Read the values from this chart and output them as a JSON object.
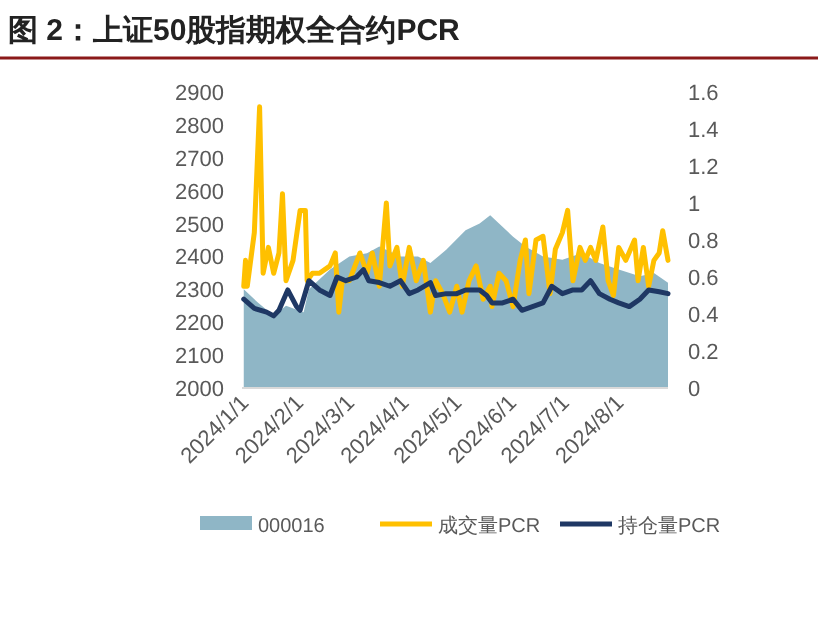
{
  "chart_data": {
    "type": "line",
    "title": "图 2：上证50股指期权全合约PCR",
    "xlim": [
      "2024-01-01",
      "2024-08-30"
    ],
    "xticks": [
      {
        "value": "2024-01-01",
        "label": "2024/1/1"
      },
      {
        "value": "2024-02-01",
        "label": "2024/2/1"
      },
      {
        "value": "2024-03-01",
        "label": "2024/3/1"
      },
      {
        "value": "2024-04-01",
        "label": "2024/4/1"
      },
      {
        "value": "2024-05-01",
        "label": "2024/5/1"
      },
      {
        "value": "2024-06-01",
        "label": "2024/6/1"
      },
      {
        "value": "2024-07-01",
        "label": "2024/7/1"
      },
      {
        "value": "2024-08-01",
        "label": "2024/8/1"
      }
    ],
    "ylim": [
      2000,
      2900
    ],
    "yticks": [
      2000,
      2100,
      2200,
      2300,
      2400,
      2500,
      2600,
      2700,
      2800,
      2900
    ],
    "y2lim": [
      0,
      1.6
    ],
    "y2ticks": [
      0,
      0.2,
      0.4,
      0.6,
      0.8,
      1,
      1.2,
      1.4,
      1.6
    ],
    "grid": false,
    "legend": "bottom",
    "marker": "none",
    "line_style": "solid",
    "series": [
      {
        "name": "000016",
        "type": "area",
        "color": "#8fb6c6",
        "x": [
          "2024-01-02",
          "2024-01-10",
          "2024-01-19",
          "2024-01-26",
          "2024-02-05",
          "2024-02-08",
          "2024-02-20",
          "2024-03-02",
          "2024-03-12",
          "2024-03-19",
          "2024-03-31",
          "2024-04-10",
          "2024-04-17",
          "2024-04-26",
          "2024-05-07",
          "2024-05-15",
          "2024-05-21",
          "2024-05-28",
          "2024-06-03",
          "2024-06-10",
          "2024-06-20",
          "2024-07-01",
          "2024-07-12",
          "2024-07-22",
          "2024-08-02",
          "2024-08-14",
          "2024-08-22",
          "2024-08-30"
        ],
        "values": [
          2300,
          2260,
          2220,
          2250,
          2230,
          2300,
          2360,
          2400,
          2410,
          2430,
          2400,
          2400,
          2380,
          2420,
          2480,
          2500,
          2525,
          2490,
          2460,
          2430,
          2400,
          2390,
          2410,
          2380,
          2360,
          2340,
          2350,
          2320
        ]
      },
      {
        "name": "成交量PCR",
        "axis": "y2",
        "color": "#ffc000",
        "x": [
          "2024-01-02",
          "2024-01-03",
          "2024-01-04",
          "2024-01-08",
          "2024-01-11",
          "2024-01-13",
          "2024-01-16",
          "2024-01-19",
          "2024-01-22",
          "2024-01-24",
          "2024-01-26",
          "2024-01-30",
          "2024-02-03",
          "2024-02-06",
          "2024-02-07",
          "2024-02-10",
          "2024-02-14",
          "2024-02-20",
          "2024-02-23",
          "2024-02-25",
          "2024-02-27",
          "2024-03-02",
          "2024-03-08",
          "2024-03-12",
          "2024-03-15",
          "2024-03-19",
          "2024-03-23",
          "2024-03-25",
          "2024-03-29",
          "2024-04-01",
          "2024-04-05",
          "2024-04-09",
          "2024-04-13",
          "2024-04-17",
          "2024-04-20",
          "2024-04-24",
          "2024-04-28",
          "2024-05-02",
          "2024-05-05",
          "2024-05-09",
          "2024-05-13",
          "2024-05-17",
          "2024-05-21",
          "2024-05-22",
          "2024-05-26",
          "2024-05-30",
          "2024-06-03",
          "2024-06-07",
          "2024-06-10",
          "2024-06-12",
          "2024-06-16",
          "2024-06-20",
          "2024-06-24",
          "2024-06-27",
          "2024-07-01",
          "2024-07-04",
          "2024-07-07",
          "2024-07-11",
          "2024-07-14",
          "2024-07-17",
          "2024-07-20",
          "2024-07-24",
          "2024-07-27",
          "2024-07-30",
          "2024-08-02",
          "2024-08-06",
          "2024-08-11",
          "2024-08-13",
          "2024-08-16",
          "2024-08-19",
          "2024-08-22",
          "2024-08-25",
          "2024-08-27",
          "2024-08-30"
        ],
        "values": [
          0.55,
          0.69,
          0.55,
          0.84,
          1.52,
          0.62,
          0.76,
          0.62,
          0.73,
          1.05,
          0.58,
          0.69,
          0.96,
          0.96,
          0.58,
          0.62,
          0.62,
          0.66,
          0.73,
          0.41,
          0.58,
          0.58,
          0.73,
          0.62,
          0.73,
          0.55,
          1.0,
          0.66,
          0.76,
          0.55,
          0.76,
          0.58,
          0.69,
          0.41,
          0.58,
          0.51,
          0.41,
          0.55,
          0.41,
          0.58,
          0.66,
          0.48,
          0.55,
          0.44,
          0.62,
          0.58,
          0.44,
          0.69,
          0.8,
          0.51,
          0.8,
          0.82,
          0.51,
          0.75,
          0.84,
          0.96,
          0.58,
          0.76,
          0.69,
          0.76,
          0.69,
          0.87,
          0.58,
          0.5,
          0.76,
          0.69,
          0.8,
          0.58,
          0.76,
          0.55,
          0.69,
          0.73,
          0.85,
          0.69
        ]
      },
      {
        "name": "持仓量PCR",
        "axis": "y2",
        "color": "#1f3864",
        "x": [
          "2024-01-02",
          "2024-01-08",
          "2024-01-15",
          "2024-01-19",
          "2024-01-22",
          "2024-01-27",
          "2024-02-01",
          "2024-02-03",
          "2024-02-08",
          "2024-02-14",
          "2024-02-20",
          "2024-02-24",
          "2024-02-29",
          "2024-03-06",
          "2024-03-10",
          "2024-03-13",
          "2024-03-19",
          "2024-03-25",
          "2024-03-31",
          "2024-04-05",
          "2024-04-10",
          "2024-04-17",
          "2024-04-20",
          "2024-04-26",
          "2024-05-02",
          "2024-05-07",
          "2024-05-15",
          "2024-05-19",
          "2024-05-22",
          "2024-05-28",
          "2024-06-03",
          "2024-06-08",
          "2024-06-14",
          "2024-06-20",
          "2024-06-25",
          "2024-07-01",
          "2024-07-07",
          "2024-07-12",
          "2024-07-17",
          "2024-07-22",
          "2024-07-28",
          "2024-08-02",
          "2024-08-08",
          "2024-08-14",
          "2024-08-19",
          "2024-08-25",
          "2024-08-30"
        ],
        "values": [
          0.48,
          0.43,
          0.41,
          0.39,
          0.42,
          0.53,
          0.44,
          0.42,
          0.58,
          0.53,
          0.5,
          0.6,
          0.58,
          0.6,
          0.64,
          0.58,
          0.57,
          0.55,
          0.58,
          0.51,
          0.53,
          0.57,
          0.5,
          0.51,
          0.51,
          0.53,
          0.53,
          0.5,
          0.46,
          0.46,
          0.48,
          0.42,
          0.44,
          0.46,
          0.55,
          0.51,
          0.53,
          0.53,
          0.58,
          0.51,
          0.48,
          0.46,
          0.44,
          0.48,
          0.53,
          0.52,
          0.51
        ]
      }
    ]
  }
}
